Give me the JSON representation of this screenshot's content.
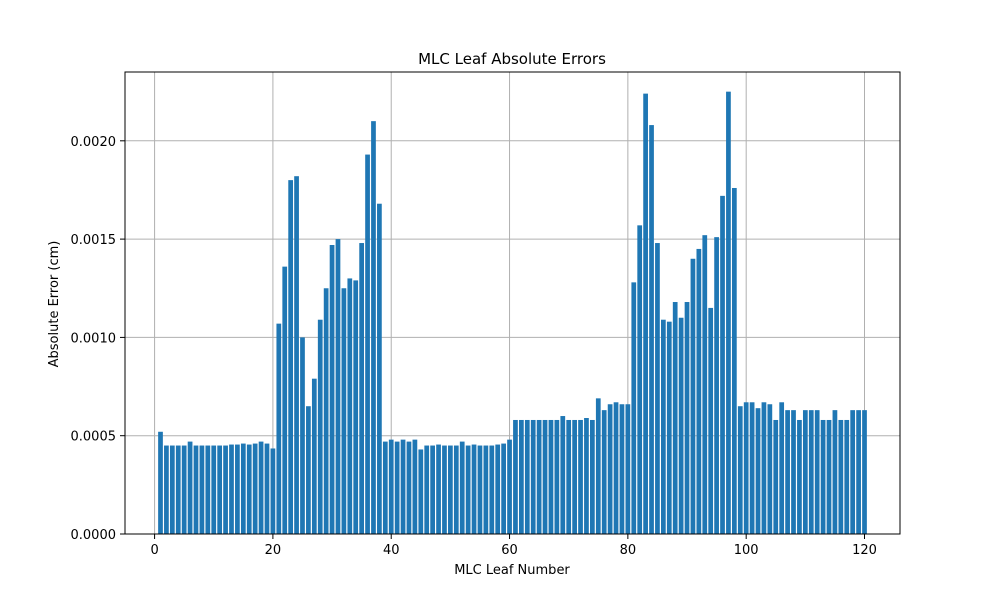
{
  "chart_data": {
    "type": "bar",
    "title": "MLC Leaf Absolute Errors",
    "xlabel": "MLC Leaf Number",
    "ylabel": "Absolute Error (cm)",
    "xlim": [
      -5,
      126
    ],
    "ylim": [
      0,
      0.00235
    ],
    "x_ticks": [
      0,
      20,
      40,
      60,
      80,
      100,
      120
    ],
    "y_ticks": [
      0,
      0.0005,
      0.001,
      0.0015,
      0.002
    ],
    "y_tick_labels": [
      "0.0000",
      "0.0005",
      "0.0010",
      "0.0015",
      "0.0020"
    ],
    "grid": true,
    "bar_color": "#1f77b4",
    "bar_width": 0.8,
    "x": [
      1,
      2,
      3,
      4,
      5,
      6,
      7,
      8,
      9,
      10,
      11,
      12,
      13,
      14,
      15,
      16,
      17,
      18,
      19,
      20,
      21,
      22,
      23,
      24,
      25,
      26,
      27,
      28,
      29,
      30,
      31,
      32,
      33,
      34,
      35,
      36,
      37,
      38,
      39,
      40,
      41,
      42,
      43,
      44,
      45,
      46,
      47,
      48,
      49,
      50,
      51,
      52,
      53,
      54,
      55,
      56,
      57,
      58,
      59,
      60,
      61,
      62,
      63,
      64,
      65,
      66,
      67,
      68,
      69,
      70,
      71,
      72,
      73,
      74,
      75,
      76,
      77,
      78,
      79,
      80,
      81,
      82,
      83,
      84,
      85,
      86,
      87,
      88,
      89,
      90,
      91,
      92,
      93,
      94,
      95,
      96,
      97,
      98,
      99,
      100,
      101,
      102,
      103,
      104,
      105,
      106,
      107,
      108,
      109,
      110,
      111,
      112,
      113,
      114,
      115,
      116,
      117,
      118,
      119,
      120
    ],
    "values": [
      0.00052,
      0.00045,
      0.00045,
      0.00045,
      0.00045,
      0.00047,
      0.00045,
      0.00045,
      0.00045,
      0.00045,
      0.00045,
      0.00045,
      0.000455,
      0.000455,
      0.00046,
      0.000455,
      0.00046,
      0.00047,
      0.00046,
      0.000435,
      0.00107,
      0.00136,
      0.0018,
      0.00182,
      0.001,
      0.00065,
      0.00079,
      0.00109,
      0.00125,
      0.00147,
      0.0015,
      0.00125,
      0.0013,
      0.00129,
      0.00148,
      0.00193,
      0.0021,
      0.00168,
      0.00047,
      0.00048,
      0.00047,
      0.00048,
      0.00047,
      0.00048,
      0.00043,
      0.00045,
      0.00045,
      0.000455,
      0.00045,
      0.00045,
      0.00045,
      0.00047,
      0.00045,
      0.000455,
      0.00045,
      0.00045,
      0.00045,
      0.000455,
      0.00046,
      0.00048,
      0.00058,
      0.00058,
      0.00058,
      0.00058,
      0.00058,
      0.00058,
      0.00058,
      0.00058,
      0.0006,
      0.00058,
      0.00058,
      0.00058,
      0.00059,
      0.00058,
      0.00069,
      0.00063,
      0.00066,
      0.00067,
      0.00066,
      0.00066,
      0.00128,
      0.00157,
      0.00224,
      0.00208,
      0.00148,
      0.00109,
      0.00108,
      0.00118,
      0.0011,
      0.00118,
      0.0014,
      0.00145,
      0.00152,
      0.00115,
      0.00151,
      0.00172,
      0.00225,
      0.00176,
      0.00065,
      0.00067,
      0.00067,
      0.00064,
      0.00067,
      0.00066,
      0.00058,
      0.00067,
      0.00063,
      0.00063,
      0.00058,
      0.00063,
      0.00063,
      0.00063,
      0.00058,
      0.00058,
      0.00063,
      0.00058,
      0.00058,
      0.00063,
      0.00063,
      0.00063
    ]
  }
}
